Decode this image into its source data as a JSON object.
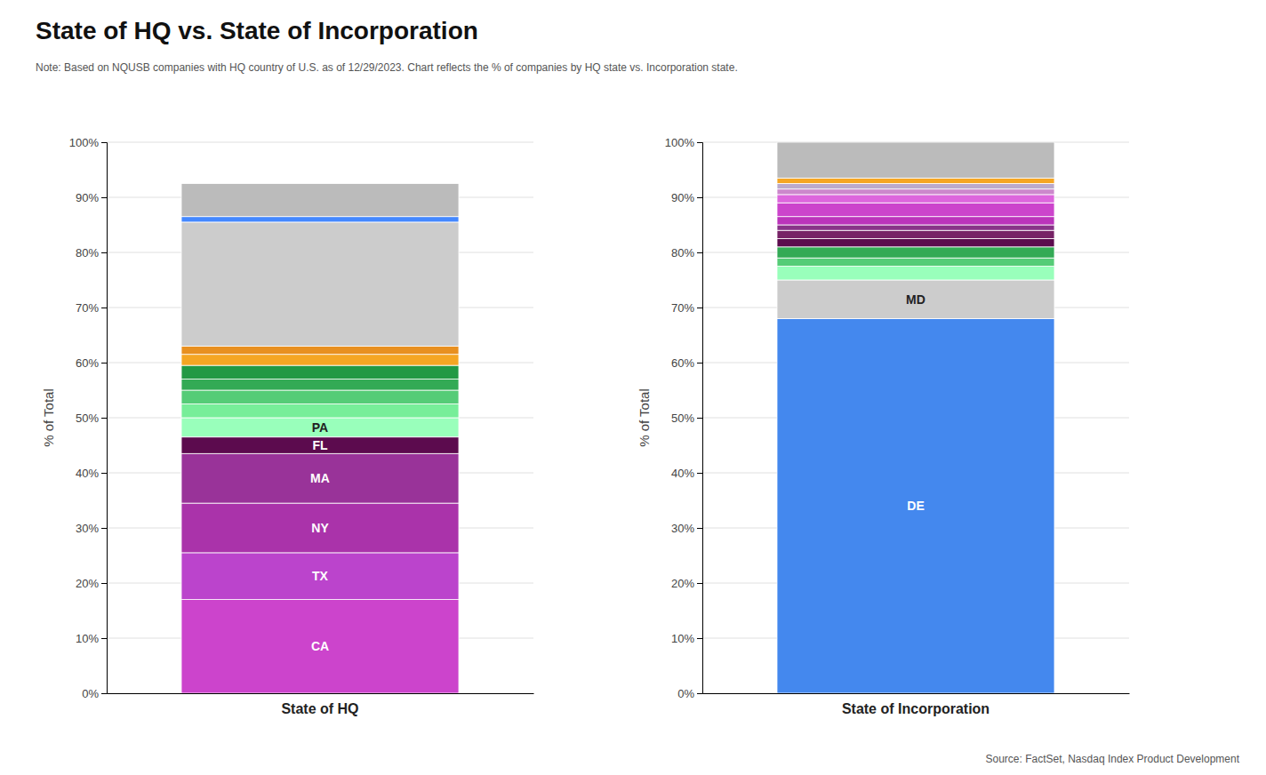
{
  "chart_data": [
    {
      "type": "bar",
      "stacked": true,
      "grid": true,
      "title": "State of HQ vs. State of Incorporation",
      "subtitle": "Note: Based on NQUSB companies with HQ country of U.S. as of 12/29/2023. Chart reflects the % of companies by HQ state vs. Incorporation state.",
      "annotations": [
        "Source: FactSet, Nasdaq Index Product Development"
      ],
      "categories": [
        "State of HQ"
      ],
      "ylabel": "% of Total",
      "ylim": [
        0,
        100
      ],
      "yticks": [
        {
          "value": 0,
          "label": "0%"
        },
        {
          "value": 10,
          "label": "10%"
        },
        {
          "value": 20,
          "label": "20%"
        },
        {
          "value": 30,
          "label": "30%"
        },
        {
          "value": 40,
          "label": "40%"
        },
        {
          "value": 50,
          "label": "50%"
        },
        {
          "value": 60,
          "label": "60%"
        },
        {
          "value": 70,
          "label": "70%"
        },
        {
          "value": 80,
          "label": "80%"
        },
        {
          "value": 90,
          "label": "90%"
        },
        {
          "value": 100,
          "label": "100%"
        }
      ],
      "series": [
        {
          "name": "CA",
          "color": "#CC44CC",
          "values": [
            17.0
          ]
        },
        {
          "name": "TX",
          "color": "#BB44CC",
          "values": [
            8.5
          ]
        },
        {
          "name": "NY",
          "color": "#AA33AA",
          "values": [
            9.0
          ]
        },
        {
          "name": "MA",
          "color": "#993399",
          "values": [
            9.0
          ]
        },
        {
          "name": "FL",
          "color": "#5C0B4E",
          "values": [
            3.0
          ]
        },
        {
          "name": "PA",
          "color": "#99FFBB",
          "values": [
            3.5
          ]
        },
        {
          "color": "#77EE99",
          "values": [
            2.5
          ]
        },
        {
          "color": "#55CC77",
          "values": [
            2.5
          ]
        },
        {
          "color": "#33AA55",
          "values": [
            2.0
          ]
        },
        {
          "color": "#229944",
          "values": [
            2.5
          ]
        },
        {
          "color": "#F5A623",
          "values": [
            2.0
          ]
        },
        {
          "color": "#E89020",
          "values": [
            1.5
          ]
        },
        {
          "color": "#CCCCCC",
          "values": [
            22.5
          ]
        },
        {
          "color": "#4488FF",
          "values": [
            1.0
          ]
        },
        {
          "color": "#BBBBBB",
          "values": [
            6.0
          ]
        }
      ]
    },
    {
      "type": "bar",
      "stacked": true,
      "grid": true,
      "categories": [
        "State of Incorporation"
      ],
      "ylabel": "% of Total",
      "ylim": [
        0,
        100
      ],
      "yticks": [
        {
          "value": 0,
          "label": "0%"
        },
        {
          "value": 10,
          "label": "10%"
        },
        {
          "value": 20,
          "label": "20%"
        },
        {
          "value": 30,
          "label": "30%"
        },
        {
          "value": 40,
          "label": "40%"
        },
        {
          "value": 50,
          "label": "50%"
        },
        {
          "value": 60,
          "label": "60%"
        },
        {
          "value": 70,
          "label": "70%"
        },
        {
          "value": 80,
          "label": "80%"
        },
        {
          "value": 90,
          "label": "90%"
        },
        {
          "value": 100,
          "label": "100%"
        }
      ],
      "series": [
        {
          "name": "DE",
          "color": "#4488EE",
          "values": [
            68.0
          ]
        },
        {
          "name": "MD",
          "color": "#CCCCCC",
          "values": [
            7.0
          ]
        },
        {
          "color": "#99FFBB",
          "values": [
            2.5
          ]
        },
        {
          "color": "#55CC77",
          "values": [
            1.5
          ]
        },
        {
          "color": "#33AA55",
          "values": [
            2.0
          ]
        },
        {
          "color": "#5C0B4E",
          "values": [
            1.5
          ]
        },
        {
          "color": "#772266",
          "values": [
            1.5
          ]
        },
        {
          "color": "#883388",
          "values": [
            1.0
          ]
        },
        {
          "color": "#BB33BB",
          "values": [
            1.5
          ]
        },
        {
          "color": "#CC44CC",
          "values": [
            2.5
          ]
        },
        {
          "color": "#DD66DD",
          "values": [
            1.5
          ]
        },
        {
          "color": "#CC88CC",
          "values": [
            1.0
          ]
        },
        {
          "color": "#BBAACC",
          "values": [
            1.0
          ]
        },
        {
          "color": "#F5A623",
          "values": [
            1.0
          ]
        },
        {
          "color": "#BBBBBB",
          "values": [
            6.5
          ]
        }
      ]
    }
  ]
}
